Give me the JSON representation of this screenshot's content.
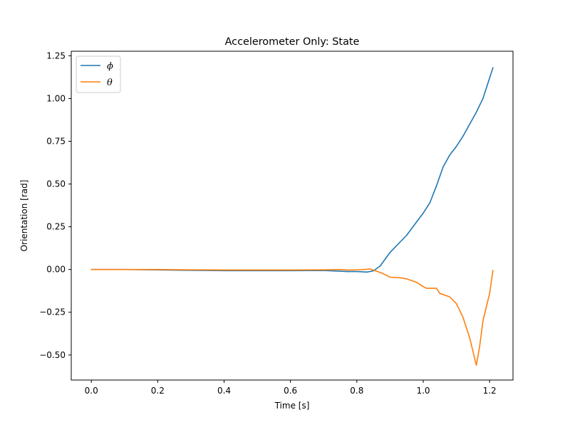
{
  "chart_data": {
    "type": "line",
    "title": "Accelerometer Only: State",
    "xlabel": "Time [s]",
    "ylabel": "Orientation [rad]",
    "xlim": [
      -0.0605,
      1.2705
    ],
    "ylim": [
      -0.6465,
      1.2765
    ],
    "xticks": [
      0.0,
      0.2,
      0.4,
      0.6,
      0.8,
      1.0,
      1.2
    ],
    "yticks": [
      -0.5,
      -0.25,
      0.0,
      0.25,
      0.5,
      0.75,
      1.0,
      1.25
    ],
    "xtick_labels": [
      "0.0",
      "0.2",
      "0.4",
      "0.6",
      "0.8",
      "1.0",
      "1.2"
    ],
    "ytick_labels": [
      "−0.50",
      "−0.25",
      "0.00",
      "0.25",
      "0.50",
      "0.75",
      "1.00",
      "1.25"
    ],
    "grid": false,
    "legend_position": "top-left",
    "series": [
      {
        "name": "ϕ",
        "color": "#1f77b4",
        "x": [
          0.0,
          0.1,
          0.2,
          0.3,
          0.4,
          0.5,
          0.6,
          0.7,
          0.75,
          0.77,
          0.8,
          0.83,
          0.85,
          0.87,
          0.9,
          0.95,
          1.0,
          1.02,
          1.04,
          1.06,
          1.08,
          1.1,
          1.12,
          1.14,
          1.16,
          1.18,
          1.2,
          1.21
        ],
        "y": [
          0.0,
          0.0,
          -0.002,
          -0.005,
          -0.007,
          -0.007,
          -0.007,
          -0.006,
          -0.01,
          -0.012,
          -0.012,
          -0.015,
          -0.008,
          0.02,
          0.1,
          0.2,
          0.33,
          0.39,
          0.49,
          0.6,
          0.67,
          0.72,
          0.78,
          0.85,
          0.92,
          1.0,
          1.12,
          1.18
        ]
      },
      {
        "name": "θ",
        "color": "#ff7f0e",
        "x": [
          0.0,
          0.1,
          0.2,
          0.3,
          0.4,
          0.5,
          0.6,
          0.7,
          0.75,
          0.77,
          0.8,
          0.82,
          0.84,
          0.86,
          0.88,
          0.9,
          0.93,
          0.95,
          0.98,
          1.0,
          1.01,
          1.04,
          1.05,
          1.08,
          1.1,
          1.12,
          1.14,
          1.155,
          1.16,
          1.17,
          1.18,
          1.2,
          1.21
        ],
        "y": [
          0.0,
          0.0,
          0.0,
          -0.002,
          -0.003,
          -0.003,
          -0.003,
          -0.002,
          0.0,
          -0.003,
          -0.002,
          0.0,
          0.003,
          -0.01,
          -0.025,
          -0.045,
          -0.048,
          -0.055,
          -0.075,
          -0.1,
          -0.11,
          -0.11,
          -0.14,
          -0.16,
          -0.2,
          -0.28,
          -0.4,
          -0.52,
          -0.56,
          -0.45,
          -0.3,
          -0.14,
          -0.005
        ]
      }
    ]
  }
}
